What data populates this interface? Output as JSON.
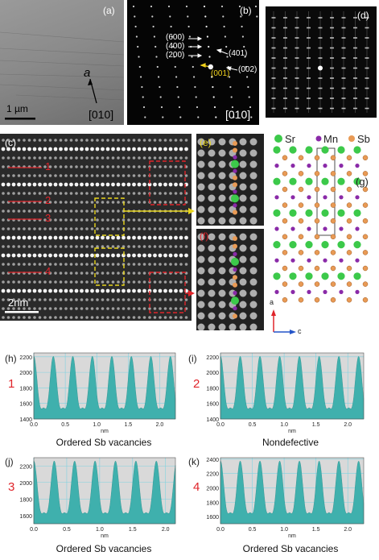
{
  "panels": {
    "a": {
      "label": "(a)",
      "zone": "[010]",
      "scale": "1 µm",
      "vector": "a"
    },
    "b": {
      "label": "(b)",
      "zone": "[010]",
      "spots": [
        "(600)",
        "(400)",
        "(200)",
        "(401)",
        "(002)",
        "(001)"
      ]
    },
    "c": {
      "label": "(c)",
      "scale": "2nm",
      "lines": [
        "1",
        "2",
        "3",
        "4"
      ]
    },
    "d": {
      "label": "(d)"
    },
    "e": {
      "label": "(e)"
    },
    "f": {
      "label": "(f)"
    },
    "g": {
      "label": "(g)",
      "legend": [
        "Sr",
        "Mn",
        "Sb"
      ],
      "legend_colors": [
        "#3cc94a",
        "#8a2aa8",
        "#e89a55"
      ],
      "axes": [
        "a",
        "c"
      ]
    }
  },
  "profiles": [
    {
      "panel": "(h)",
      "num": "1",
      "caption": "Ordered Sb vacancies",
      "xunit": "nm",
      "yticks": [
        "2200",
        "2000",
        "1800",
        "1600",
        "1400"
      ],
      "ymin": 1400,
      "ymax": 2250,
      "xticks": [
        "0.0",
        "0.5",
        "1.0",
        "1.5",
        "2.0"
      ],
      "xmax": 2.25
    },
    {
      "panel": "(i)",
      "num": "2",
      "caption": "Nondefective",
      "xunit": "nm",
      "yticks": [
        "2200",
        "2000",
        "1800",
        "1600",
        "1400"
      ],
      "ymin": 1400,
      "ymax": 2250,
      "xticks": [
        "0.0",
        "0.5",
        "1.0",
        "1.5",
        "2.0"
      ],
      "xmax": 2.25
    },
    {
      "panel": "(j)",
      "num": "3",
      "caption": "Ordered Sb vacancies",
      "xunit": "nm",
      "yticks": [
        "2200",
        "2000",
        "1800",
        "1600"
      ],
      "ymin": 1500,
      "ymax": 2300,
      "xticks": [
        "0.0",
        "0.5",
        "1.0",
        "1.5",
        "2.0"
      ],
      "xmax": 2.15
    },
    {
      "panel": "(k)",
      "num": "4",
      "caption": "Ordered Sb vacancies",
      "xunit": "nm",
      "yticks": [
        "2400",
        "2200",
        "2000",
        "1800",
        "1600"
      ],
      "ymin": 1500,
      "ymax": 2420,
      "xticks": [
        "0.0",
        "0.5",
        "1.0",
        "1.5",
        "2.0"
      ],
      "xmax": 2.25
    }
  ]
}
